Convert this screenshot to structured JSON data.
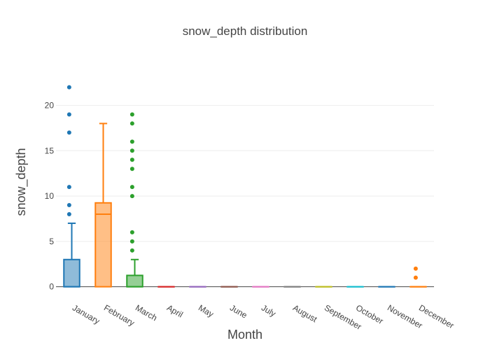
{
  "chart_data": {
    "type": "box",
    "title": "snow_depth distribution",
    "xlabel": "Month",
    "ylabel": "snow_depth",
    "categories": [
      "January",
      "February",
      "March",
      "April",
      "May",
      "June",
      "July",
      "August",
      "September",
      "October",
      "November",
      "December"
    ],
    "ylim": [
      -0.8,
      23.9
    ],
    "yticks": [
      0,
      5,
      10,
      15,
      20
    ],
    "grid": true,
    "colors": [
      "#1f77b4",
      "#ff7f0e",
      "#2ca02c",
      "#d62728",
      "#9467bd",
      "#8c564b",
      "#e377c2",
      "#7f7f7f",
      "#bcbd22",
      "#17becf",
      "#1f77b4",
      "#ff7f0e"
    ],
    "boxes": [
      {
        "name": "January",
        "min": 0,
        "q1": 0,
        "median": 0,
        "q3": 3,
        "max": 7,
        "outliers": [
          8,
          9,
          11,
          17,
          19,
          22
        ]
      },
      {
        "name": "February",
        "min": 0,
        "q1": 0,
        "median": 8,
        "q3": 9.25,
        "max": 18,
        "outliers": []
      },
      {
        "name": "March",
        "min": 0,
        "q1": 0,
        "median": 0,
        "q3": 1.25,
        "max": 3,
        "outliers": [
          4,
          5,
          6,
          10,
          11,
          13,
          14,
          15,
          16,
          18,
          19
        ]
      },
      {
        "name": "April",
        "min": 0,
        "q1": 0,
        "median": 0,
        "q3": 0,
        "max": 0,
        "outliers": []
      },
      {
        "name": "May",
        "min": 0,
        "q1": 0,
        "median": 0,
        "q3": 0,
        "max": 0,
        "outliers": []
      },
      {
        "name": "June",
        "min": 0,
        "q1": 0,
        "median": 0,
        "q3": 0,
        "max": 0,
        "outliers": []
      },
      {
        "name": "July",
        "min": 0,
        "q1": 0,
        "median": 0,
        "q3": 0,
        "max": 0,
        "outliers": []
      },
      {
        "name": "August",
        "min": 0,
        "q1": 0,
        "median": 0,
        "q3": 0,
        "max": 0,
        "outliers": []
      },
      {
        "name": "September",
        "min": 0,
        "q1": 0,
        "median": 0,
        "q3": 0,
        "max": 0,
        "outliers": []
      },
      {
        "name": "October",
        "min": 0,
        "q1": 0,
        "median": 0,
        "q3": 0,
        "max": 0,
        "outliers": []
      },
      {
        "name": "November",
        "min": 0,
        "q1": 0,
        "median": 0,
        "q3": 0,
        "max": 0,
        "outliers": []
      },
      {
        "name": "December",
        "min": 0,
        "q1": 0,
        "median": 0,
        "q3": 0,
        "max": 0,
        "outliers": [
          1,
          2
        ]
      }
    ]
  }
}
